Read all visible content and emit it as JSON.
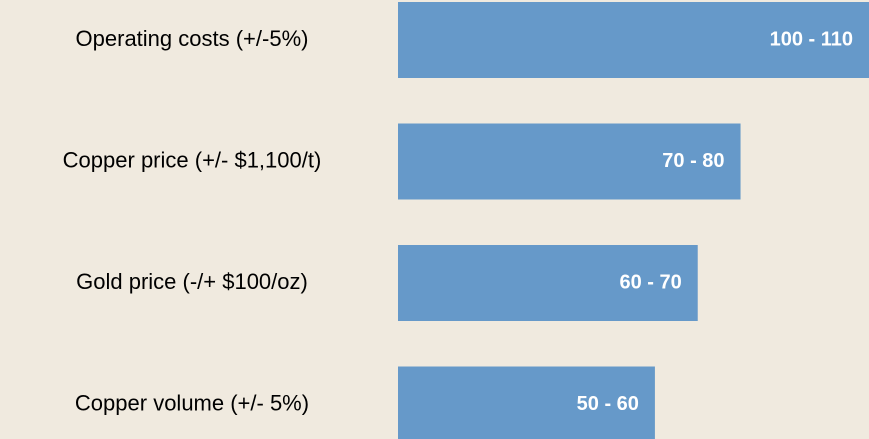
{
  "chart_data": {
    "type": "barh",
    "categories": [
      "Operating costs (+/-5%)",
      "Copper price (+/- $1,100/t)",
      "Gold price (-/+ $100/oz)",
      "Copper volume (+/- 5%)"
    ],
    "values": [
      110,
      80,
      70,
      60
    ],
    "value_labels": [
      "100 - 110",
      "70 - 80",
      "60 - 70",
      "50 - 60"
    ],
    "color": "#6699c9"
  }
}
